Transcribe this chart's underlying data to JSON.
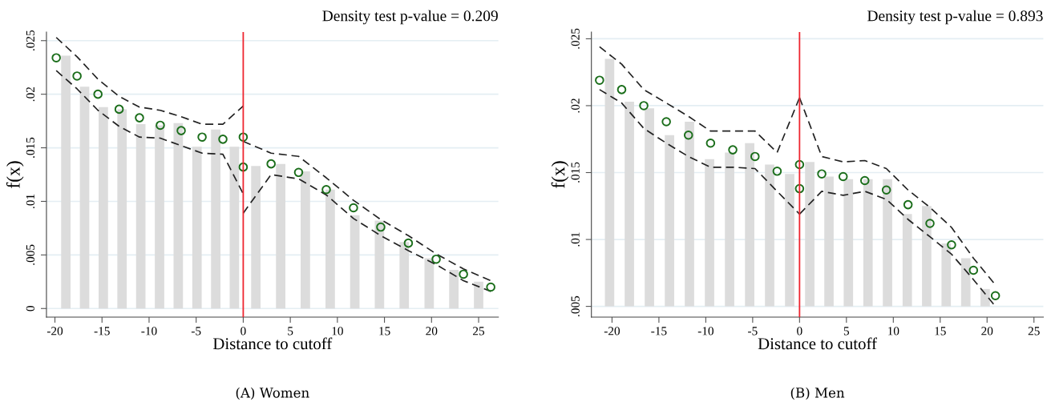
{
  "chart_data": [
    {
      "type": "bar",
      "title": "Density test p-value = 0.209",
      "xlabel": "Distance to cutoff",
      "ylabel": "f(x)",
      "annotations": [
        "(A) Women"
      ],
      "xlim": [
        -20.9,
        27.1
      ],
      "xticks": [
        -20,
        -15,
        -10,
        -5,
        0,
        5,
        10,
        15,
        20,
        25
      ],
      "ylim": [
        -0.0008,
        0.0258
      ],
      "yticks": [
        0,
        {
          "value": 0.005,
          "label": ".005"
        },
        {
          "value": 0.01,
          "label": ".01"
        },
        {
          "value": 0.015,
          "label": ".015"
        },
        {
          "value": 0.02,
          "label": ".02"
        },
        {
          "value": 0.025,
          "label": ".025"
        }
      ],
      "grid": "y",
      "ref_lines": [
        {
          "axis": "x",
          "value": 0,
          "color": "#ee2630"
        }
      ],
      "series": [
        {
          "color": "#dcdcdc",
          "x": [
            -18.84,
            -16.85,
            -14.86,
            -12.87,
            -10.88,
            -8.89,
            -6.9,
            -4.91,
            -2.92,
            -0.94,
            1.34,
            3.98,
            6.6,
            9.24,
            11.85,
            14.47,
            17.1,
            19.75,
            22.37,
            25.0
          ],
          "values": [
            0.0236,
            0.0207,
            0.0188,
            0.0186,
            0.0172,
            0.0171,
            0.0173,
            0.0151,
            0.0167,
            0.0151,
            0.0133,
            0.0135,
            0.0128,
            0.0111,
            0.0087,
            0.0082,
            0.0062,
            0.0047,
            0.0036,
            0.0025
          ]
        },
        {
          "type": "scatter",
          "color": "#1b6e1b",
          "marker": "circle",
          "x": [
            -19.86,
            -17.65,
            -15.43,
            -13.18,
            -11.02,
            -8.81,
            -6.59,
            -4.37,
            -2.16,
            0
          ],
          "values": [
            0.0234,
            0.0217,
            0.02,
            0.0186,
            0.0178,
            0.0171,
            0.0166,
            0.016,
            0.0158,
            0.016
          ]
        },
        {
          "type": "scatter",
          "color": "#1b6e1b",
          "marker": "circle",
          "x": [
            0,
            2.96,
            5.88,
            8.82,
            11.71,
            14.61,
            17.54,
            20.49,
            23.39,
            26.29
          ],
          "values": [
            0.0132,
            0.0135,
            0.0127,
            0.0111,
            0.0094,
            0.0076,
            0.0061,
            0.0046,
            0.0032,
            0.002
          ]
        },
        {
          "type": "line",
          "color": "#222222",
          "line_style": "dashed",
          "x": [
            -19.86,
            -17.65,
            -15.43,
            -13.18,
            -11.02,
            -8.81,
            -6.59,
            -4.37,
            -2.16,
            0
          ],
          "values": [
            0.0253,
            0.0235,
            0.0214,
            0.0198,
            0.0188,
            0.0185,
            0.0179,
            0.0172,
            0.0172,
            0.0189
          ]
        },
        {
          "type": "line",
          "color": "#222222",
          "line_style": "dashed",
          "x": [
            -19.86,
            -17.65,
            -15.43,
            -13.18,
            -11.02,
            -8.81,
            -6.59,
            -4.37,
            -2.16,
            0
          ],
          "values": [
            0.0222,
            0.0205,
            0.0185,
            0.017,
            0.016,
            0.0159,
            0.0152,
            0.0145,
            0.0144,
            0.0107
          ]
        },
        {
          "type": "line",
          "color": "#222222",
          "line_style": "dashed",
          "x": [
            0,
            2.96,
            5.88,
            8.82,
            11.71,
            14.61,
            17.54,
            20.49,
            23.39,
            26.29
          ],
          "values": [
            0.0156,
            0.0145,
            0.0142,
            0.0122,
            0.0101,
            0.0083,
            0.0068,
            0.0051,
            0.0037,
            0.0026
          ]
        },
        {
          "type": "line",
          "color": "#222222",
          "line_style": "dashed",
          "x": [
            0,
            2.96,
            5.88,
            8.82,
            11.71,
            14.61,
            17.54,
            20.49,
            23.39,
            26.29
          ],
          "values": [
            0.0089,
            0.0125,
            0.0121,
            0.0106,
            0.0084,
            0.0068,
            0.0054,
            0.0041,
            0.0026,
            0.0016
          ]
        }
      ]
    },
    {
      "type": "bar",
      "title": "Density test p-value = 0.893",
      "xlabel": "Distance to cutoff",
      "ylabel": "f(x)",
      "annotations": [
        "(B) Men"
      ],
      "xlim": [
        -22.2,
        26.0
      ],
      "xticks": [
        -20,
        -15,
        -10,
        -5,
        0,
        5,
        10,
        15,
        20,
        25
      ],
      "ylim": [
        0.0042,
        0.0255
      ],
      "yticks": [
        {
          "value": 0.005,
          "label": ".005"
        },
        {
          "value": 0.01,
          "label": ".01"
        },
        {
          "value": 0.015,
          "label": ".015"
        },
        {
          "value": 0.02,
          "label": ".02"
        },
        {
          "value": 0.025,
          "label": ".025"
        }
      ],
      "grid": "y",
      "ref_lines": [
        {
          "axis": "x",
          "value": 0,
          "color": "#ee2630"
        }
      ],
      "series": [
        {
          "color": "#dcdcdc",
          "x": [
            -20.26,
            -18.15,
            -16.01,
            -13.87,
            -11.74,
            -9.6,
            -7.46,
            -5.32,
            -3.19,
            -1.05,
            1.09,
            3.14,
            5.21,
            7.3,
            9.38,
            11.49,
            13.56,
            15.64,
            17.73,
            19.8
          ],
          "base": [
            0.005,
            0.005,
            0.005,
            0.005,
            0.005,
            0.005,
            0.005,
            0.005,
            0.005,
            0.005,
            0.005,
            0.005,
            0.005,
            0.005,
            0.005,
            0.005,
            0.005,
            0.005,
            0.005,
            0.005
          ],
          "values": [
            0.0185,
            0.0153,
            0.0148,
            0.0128,
            0.0138,
            0.011,
            0.0115,
            0.0122,
            0.0106,
            0.0099,
            0.0108,
            0.0097,
            0.0095,
            0.0095,
            0.0095,
            0.0069,
            0.0075,
            0.0047,
            0.0036,
            0.0013
          ]
        },
        {
          "type": "scatter",
          "color": "#1b6e1b",
          "marker": "circle",
          "x": [
            -21.33,
            -18.97,
            -16.61,
            -14.21,
            -11.85,
            -9.49,
            -7.12,
            -4.75,
            -2.39,
            0
          ],
          "values": [
            0.0219,
            0.0212,
            0.02,
            0.0188,
            0.0178,
            0.0172,
            0.0167,
            0.0162,
            0.0151,
            0.0156
          ]
        },
        {
          "type": "scatter",
          "color": "#1b6e1b",
          "marker": "circle",
          "x": [
            0,
            2.37,
            4.65,
            6.96,
            9.26,
            11.57,
            13.91,
            16.21,
            18.55,
            20.89
          ],
          "values": [
            0.0138,
            0.0149,
            0.0147,
            0.0144,
            0.0137,
            0.0126,
            0.0112,
            0.0096,
            0.0077,
            0.0058
          ]
        },
        {
          "type": "line",
          "color": "#222222",
          "line_style": "dashed",
          "x": [
            -21.33,
            -18.97,
            -16.61,
            -14.21,
            -11.85,
            -9.49,
            -7.12,
            -4.75,
            -2.39,
            0
          ],
          "values": [
            0.0244,
            0.0231,
            0.0212,
            0.0202,
            0.0192,
            0.0181,
            0.0181,
            0.0181,
            0.0165,
            0.0206
          ]
        },
        {
          "type": "line",
          "color": "#222222",
          "line_style": "dashed",
          "x": [
            -21.33,
            -18.97,
            -16.61,
            -14.21,
            -11.85,
            -9.49,
            -7.12,
            -4.75,
            -2.39,
            0
          ],
          "values": [
            0.0212,
            0.0202,
            0.0183,
            0.0172,
            0.0162,
            0.0154,
            0.0154,
            0.0153,
            0.0136,
            0.0119
          ]
        },
        {
          "type": "line",
          "color": "#222222",
          "line_style": "dashed",
          "x": [
            0,
            2.37,
            4.65,
            6.96,
            9.26,
            11.57,
            13.91,
            16.21,
            18.55,
            20.89
          ],
          "values": [
            0.0206,
            0.0162,
            0.0158,
            0.0159,
            0.0153,
            0.0137,
            0.0124,
            0.0109,
            0.0086,
            0.0066
          ]
        },
        {
          "type": "line",
          "color": "#222222",
          "line_style": "dashed",
          "x": [
            0,
            2.37,
            4.65,
            6.96,
            9.26,
            11.57,
            13.91,
            16.21,
            18.55,
            20.89
          ],
          "values": [
            0.0119,
            0.0136,
            0.0133,
            0.0136,
            0.013,
            0.0115,
            0.0102,
            0.0089,
            0.007,
            0.005
          ]
        }
      ]
    }
  ]
}
